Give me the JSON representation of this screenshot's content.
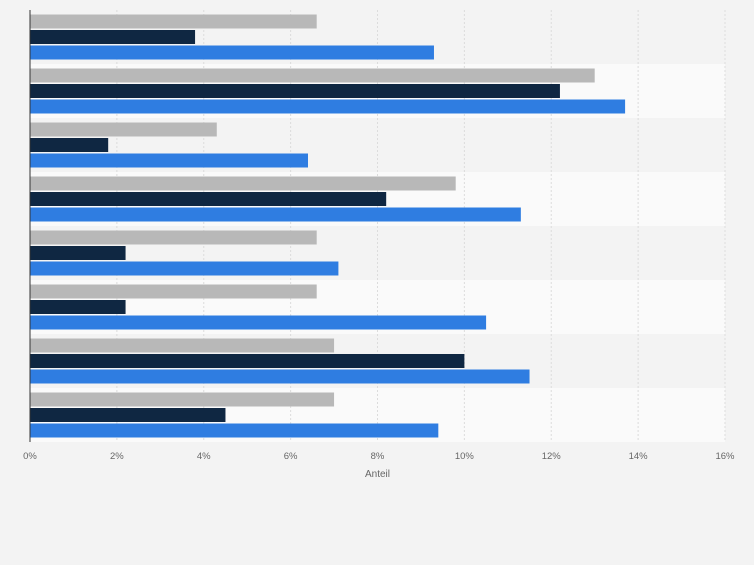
{
  "chart_data": {
    "type": "bar",
    "orientation": "horizontal",
    "categories": [
      "",
      "",
      "",
      "",
      "",
      "",
      "",
      ""
    ],
    "series": [
      {
        "color": "#b8b8b8",
        "values": [
          6.6,
          13.0,
          4.3,
          9.8,
          6.6,
          6.6,
          7.0,
          7.0
        ]
      },
      {
        "color": "#0f2742",
        "values": [
          3.8,
          12.2,
          1.8,
          8.2,
          2.2,
          2.2,
          10.0,
          4.5
        ]
      },
      {
        "color": "#2f7de1",
        "values": [
          9.3,
          13.7,
          6.4,
          11.3,
          7.1,
          10.5,
          11.5,
          9.4
        ]
      }
    ],
    "x_ticks": [
      "0%",
      "2%",
      "4%",
      "6%",
      "8%",
      "10%",
      "12%",
      "14%",
      "16%"
    ],
    "xlim": [
      0,
      16
    ],
    "xlabel": "Anteil",
    "ylabel": "",
    "title": "",
    "grid": true,
    "legend": "none"
  }
}
